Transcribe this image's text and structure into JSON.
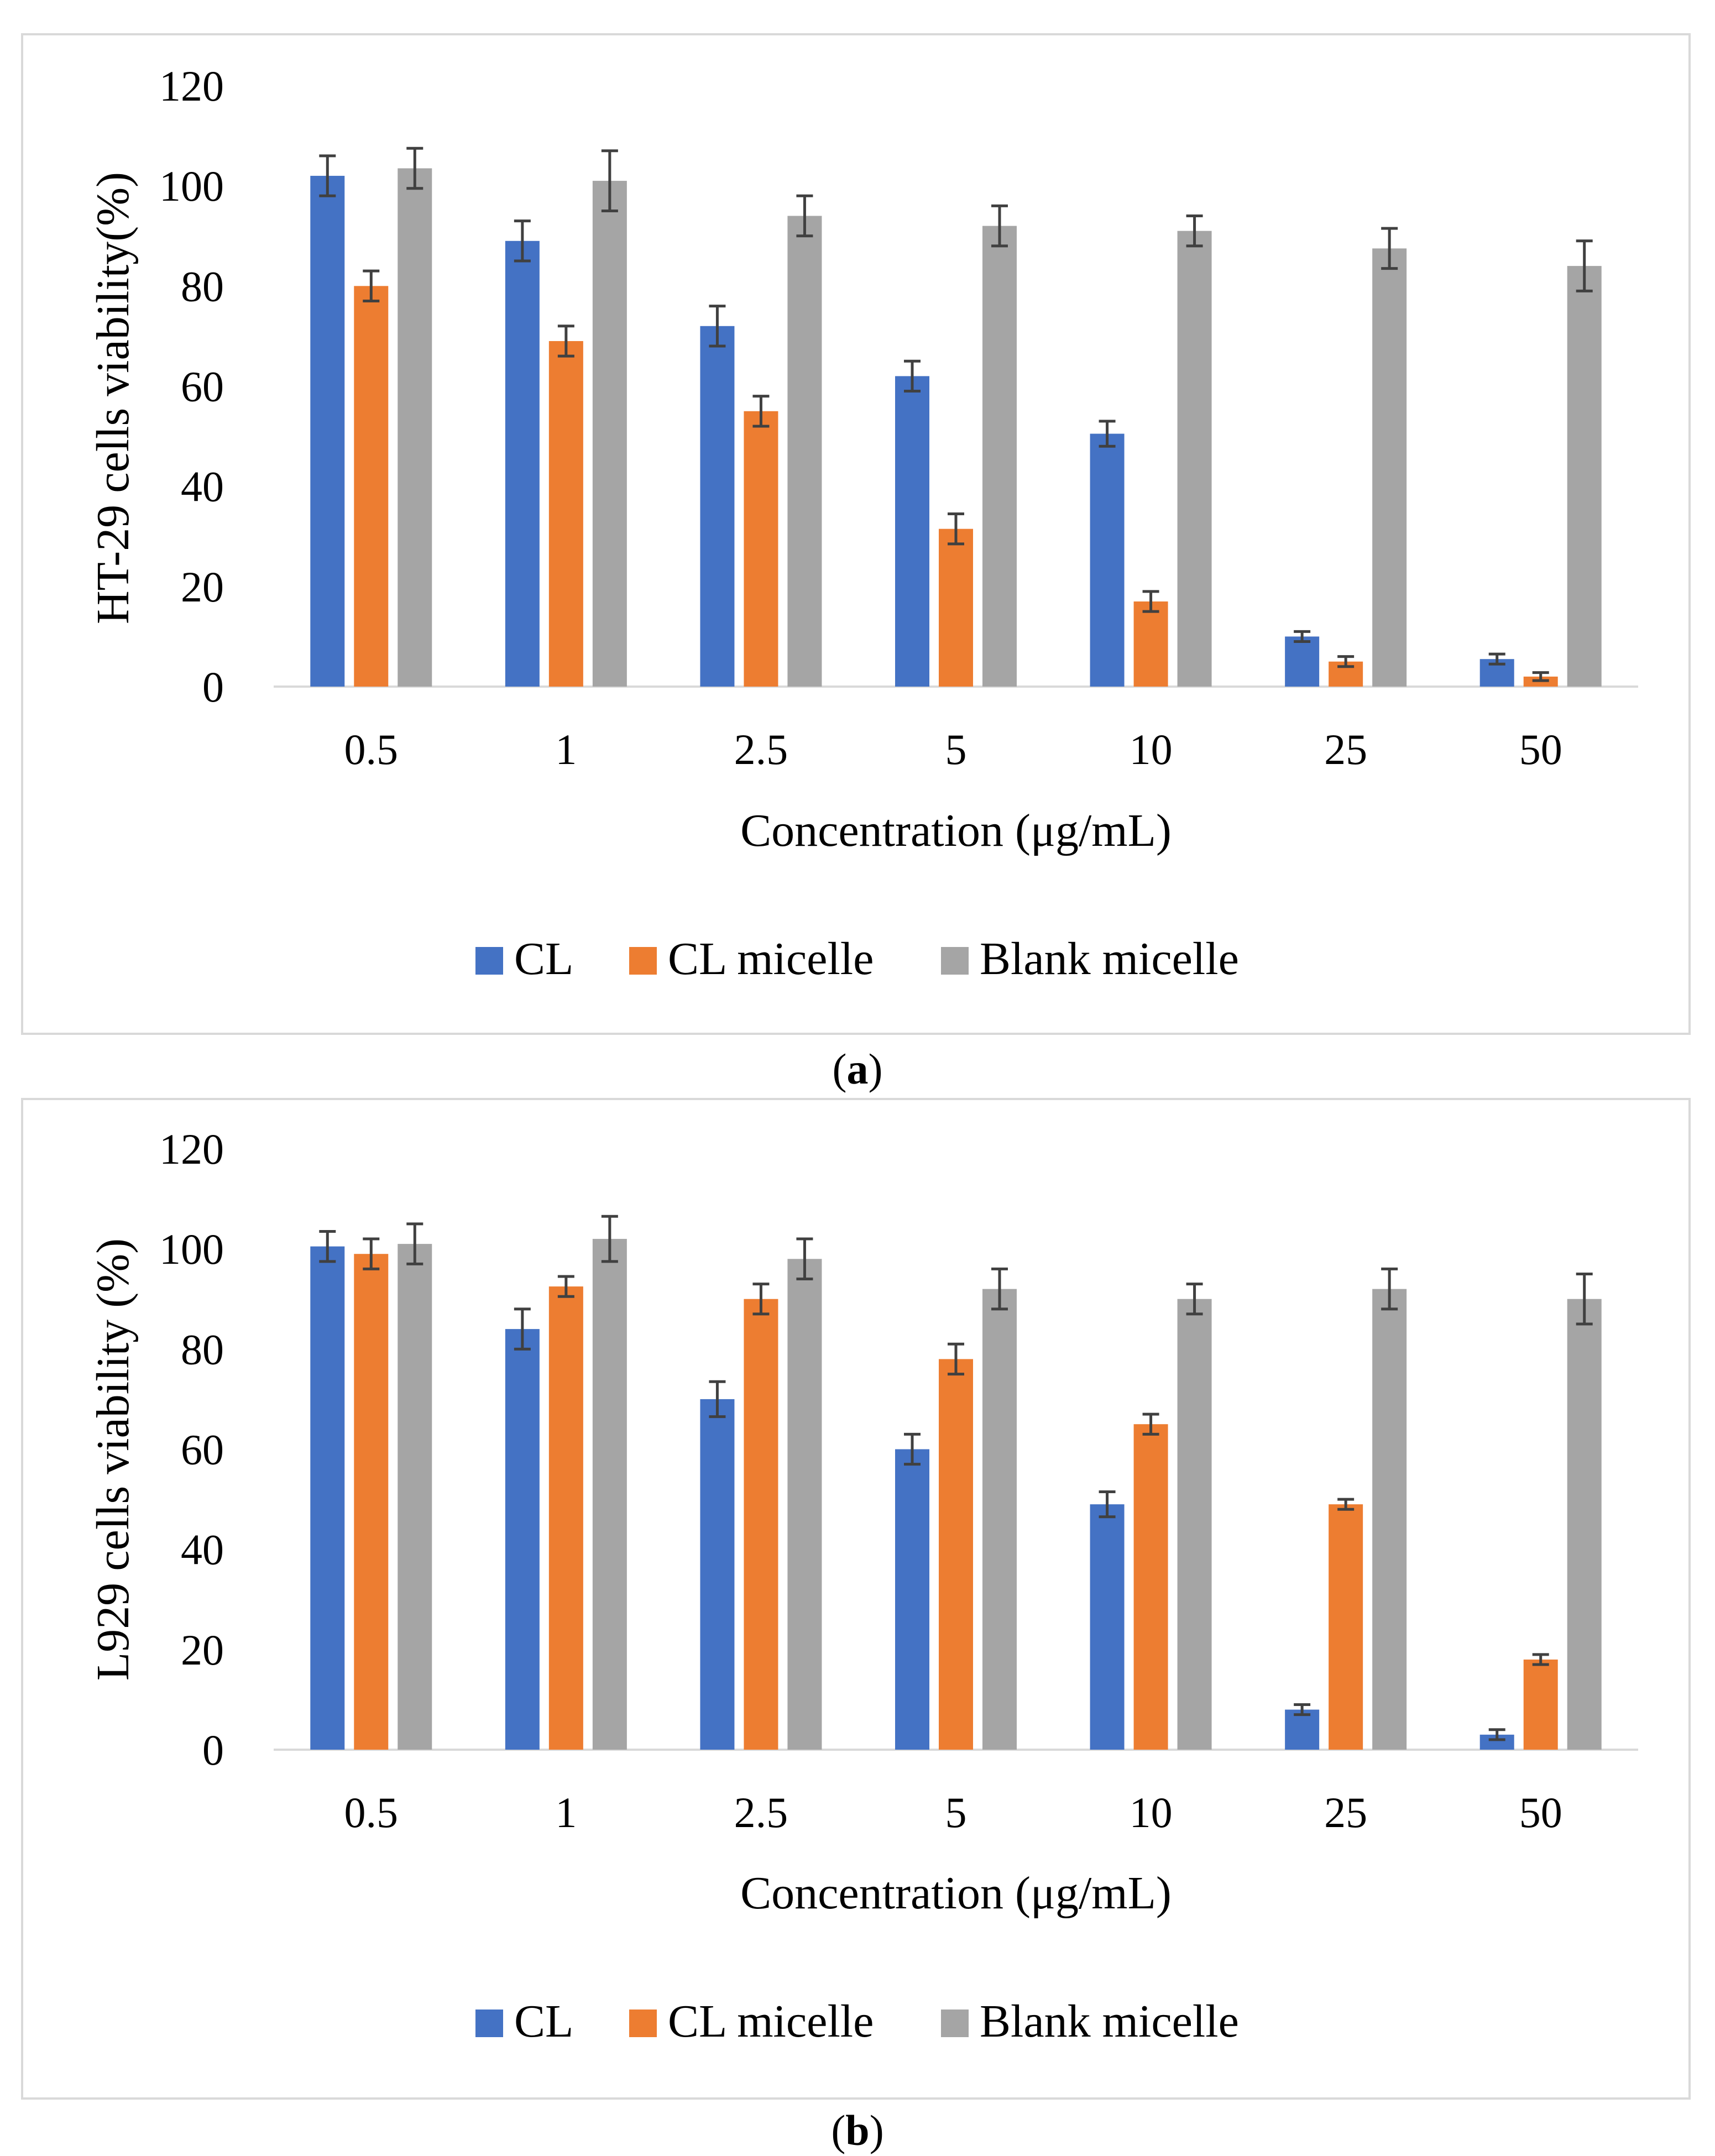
{
  "chart_data": [
    {
      "id": "a",
      "type": "bar",
      "caption_letter": "a",
      "ylabel": "HT-29 cells viability(%)",
      "xlabel": "Concentration (μg/mL)",
      "categories": [
        "0.5",
        "1",
        "2.5",
        "5",
        "10",
        "25",
        "50"
      ],
      "yticks": [
        "0",
        "20",
        "40",
        "60",
        "80",
        "100",
        "120"
      ],
      "ylim": [
        0,
        120
      ],
      "grid": false,
      "legend_position": "bottom",
      "series": [
        {
          "name": "CL",
          "color": "#4472c4",
          "values": [
            102,
            89,
            72,
            62,
            50.5,
            10,
            5.5
          ],
          "errors": [
            4,
            4,
            4,
            3,
            2.5,
            1,
            1
          ]
        },
        {
          "name": "CL micelle",
          "color": "#ed7d31",
          "values": [
            80,
            69,
            55,
            31.5,
            17,
            5,
            2
          ],
          "errors": [
            3,
            3,
            3,
            3,
            2,
            1,
            0.8
          ]
        },
        {
          "name": "Blank micelle",
          "color": "#a5a5a5",
          "values": [
            103.5,
            101,
            94,
            92,
            91,
            87.5,
            84
          ],
          "errors": [
            4,
            6,
            4,
            4,
            3,
            4,
            5
          ]
        }
      ]
    },
    {
      "id": "b",
      "type": "bar",
      "caption_letter": "b",
      "ylabel": "L929 cells viability (%)",
      "xlabel": "Concentration (μg/mL)",
      "categories": [
        "0.5",
        "1",
        "2.5",
        "5",
        "10",
        "25",
        "50"
      ],
      "yticks": [
        "0",
        "20",
        "40",
        "60",
        "80",
        "100",
        "120"
      ],
      "ylim": [
        0,
        120
      ],
      "grid": false,
      "legend_position": "bottom",
      "series": [
        {
          "name": "CL",
          "color": "#4472c4",
          "values": [
            100.5,
            84,
            70,
            60,
            49,
            8,
            3
          ],
          "errors": [
            3,
            4,
            3.5,
            3,
            2.5,
            1,
            1
          ]
        },
        {
          "name": "CL micelle",
          "color": "#ed7d31",
          "values": [
            99,
            92.5,
            90,
            78,
            65,
            49,
            18
          ],
          "errors": [
            3,
            2,
            3,
            3,
            2,
            1,
            1
          ]
        },
        {
          "name": "Blank micelle",
          "color": "#a5a5a5",
          "values": [
            101,
            102,
            98,
            92,
            90,
            92,
            90
          ],
          "errors": [
            4,
            4.5,
            4,
            4,
            3,
            4,
            5
          ]
        }
      ]
    }
  ]
}
